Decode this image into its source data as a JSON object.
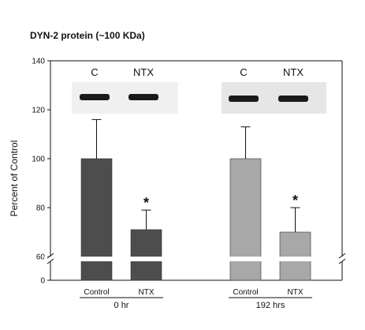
{
  "chart_data": {
    "type": "bar",
    "title": "DYN-2 protein (~100 KDa)",
    "ylabel": "Percent of Control",
    "xlabel": "",
    "ylim": [
      60,
      140
    ],
    "axis_break": true,
    "yticks": [
      0,
      60,
      80,
      100,
      120,
      140
    ],
    "grid": false,
    "groups": [
      {
        "label": "0 hr",
        "bar_color": "#4d4d4d",
        "blot_labels": [
          "C",
          "NTX"
        ],
        "bars": [
          {
            "category": "Control",
            "value": 100,
            "error": 16,
            "significance": ""
          },
          {
            "category": "NTX",
            "value": 71,
            "error": 8,
            "significance": "*"
          }
        ]
      },
      {
        "label": "192 hrs",
        "bar_color": "#a8a8a8",
        "blot_labels": [
          "C",
          "NTX"
        ],
        "bars": [
          {
            "category": "Control",
            "value": 100,
            "error": 13,
            "significance": ""
          },
          {
            "category": "NTX",
            "value": 70,
            "error": 10,
            "significance": "*"
          }
        ]
      }
    ]
  }
}
